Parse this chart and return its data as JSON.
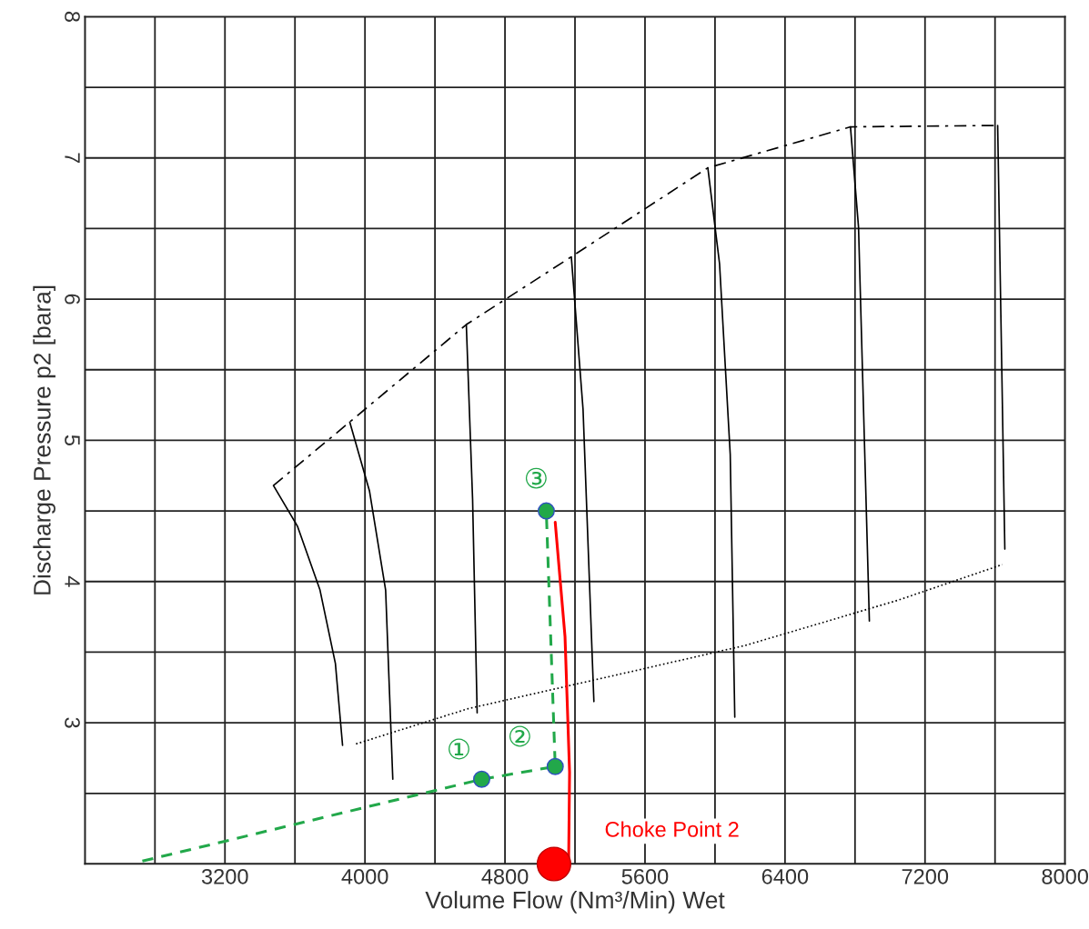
{
  "chart_data": {
    "type": "line",
    "xlabel": "Volume Flow (Nm³/Min) Wet",
    "ylabel": "Discharge Pressure p2 [bara]",
    "xlim": [
      2400,
      8000
    ],
    "xticks": [
      {
        "value": 2400,
        "label": null
      },
      {
        "value": 2800,
        "label": null
      },
      3200,
      {
        "value": 3600,
        "label": null
      },
      4000,
      {
        "value": 4400,
        "label": null
      },
      4800,
      {
        "value": 5200,
        "label": null
      },
      5600,
      {
        "value": 6000,
        "label": null
      },
      6400,
      {
        "value": 6800,
        "label": null
      },
      7200,
      {
        "value": 7600,
        "label": null
      },
      8000
    ],
    "ylim": [
      2,
      8
    ],
    "yticks": [
      {
        "value": 2,
        "label": null
      },
      {
        "value": 2.5,
        "label": null
      },
      3,
      {
        "value": 3.5,
        "label": null
      },
      4,
      {
        "value": 4.5,
        "label": null
      },
      5,
      {
        "value": 5.5,
        "label": null
      },
      6,
      {
        "value": 6.5,
        "label": null
      },
      7,
      {
        "value": 7.5,
        "label": null
      },
      8
    ],
    "grid": true,
    "legend": false,
    "series": [
      {
        "type": "line",
        "color": "#000000",
        "line_style": "dashed",
        "x": [
          3477,
          3913,
          4579,
          5179,
          5959,
          6774,
          7615
        ],
        "values": [
          4.68,
          5.13,
          5.82,
          6.3,
          6.93,
          7.22,
          7.23
        ]
      },
      {
        "type": "line",
        "color": "#000000",
        "line_style": "dotted",
        "x": [
          3949,
          4590,
          5513,
          6180,
          7051,
          7641
        ],
        "values": [
          2.85,
          3.1,
          3.36,
          3.55,
          3.87,
          4.12
        ]
      },
      {
        "type": "line",
        "color": "#000000",
        "line_style": "solid",
        "x": [
          3477,
          3615,
          3743,
          3831,
          3872
        ],
        "values": [
          4.68,
          4.39,
          3.94,
          3.42,
          2.84
        ]
      },
      {
        "type": "line",
        "color": "#000000",
        "line_style": "solid",
        "x": [
          3913,
          4026,
          4118,
          4159
        ],
        "values": [
          5.13,
          4.64,
          3.94,
          2.6
        ]
      },
      {
        "type": "line",
        "color": "#000000",
        "line_style": "solid",
        "x": [
          4579,
          4615,
          4641
        ],
        "values": [
          5.82,
          4.58,
          3.07
        ]
      },
      {
        "type": "line",
        "color": "#000000",
        "line_style": "solid",
        "x": [
          5179,
          5246,
          5308
        ],
        "values": [
          6.3,
          5.22,
          3.15
        ]
      },
      {
        "type": "line",
        "color": "#000000",
        "line_style": "solid",
        "x": [
          5959,
          6026,
          6087,
          6113
        ],
        "values": [
          6.93,
          6.25,
          4.9,
          3.04
        ]
      },
      {
        "type": "line",
        "color": "#000000",
        "line_style": "solid",
        "x": [
          6774,
          6820,
          6882
        ],
        "values": [
          7.22,
          6.51,
          3.72
        ]
      },
      {
        "type": "line",
        "color": "#000000",
        "line_style": "solid",
        "x": [
          7615,
          7656
        ],
        "values": [
          7.23,
          4.23
        ]
      },
      {
        "type": "line",
        "color": "#22a84a",
        "line_style": "dashed",
        "x": [
          2728,
          4667,
          5087,
          5036
        ],
        "values": [
          2.02,
          2.6,
          2.69,
          4.5
        ]
      },
      {
        "type": "scatter",
        "color": "#22a84a",
        "marker": "circle",
        "x": [
          4667,
          5087,
          5036
        ],
        "values": [
          2.6,
          2.69,
          4.5
        ]
      },
      {
        "type": "line",
        "color": "#ff0000",
        "line_style": "solid",
        "x": [
          5087,
          5143,
          5169,
          5164
        ],
        "values": [
          4.42,
          3.61,
          2.65,
          2.05
        ]
      },
      {
        "type": "scatter",
        "color": "#ff0000",
        "marker": "circle",
        "x": [
          5080
        ],
        "values": [
          2.0
        ]
      }
    ],
    "annotations": [
      "①",
      "②",
      "③",
      {
        "text": "Choke Point 2",
        "x": 5080,
        "y": 2.0
      }
    ]
  }
}
